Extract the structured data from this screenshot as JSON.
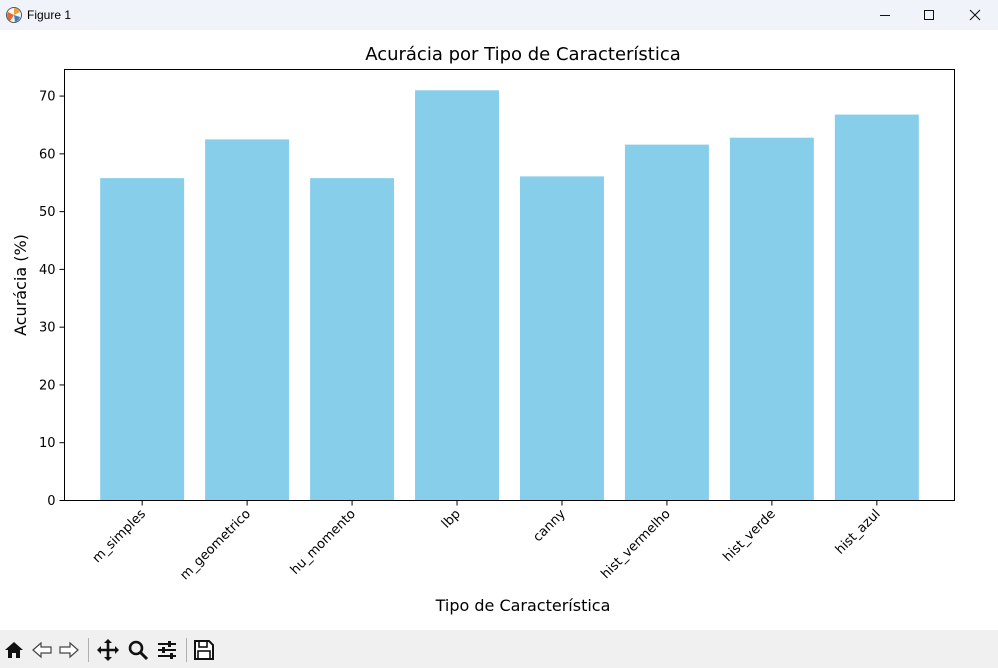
{
  "window": {
    "title": "Figure 1",
    "icons": {
      "app": "matplotlib-icon",
      "minimize": "minimize-icon",
      "maximize": "maximize-icon",
      "close": "close-icon"
    }
  },
  "toolbar": {
    "buttons": [
      {
        "name": "home-button",
        "icon": "home-icon"
      },
      {
        "name": "back-button",
        "icon": "arrow-left-icon"
      },
      {
        "name": "forward-button",
        "icon": "arrow-right-icon"
      },
      {
        "name": "pan-button",
        "icon": "move-icon"
      },
      {
        "name": "zoom-button",
        "icon": "magnifier-icon"
      },
      {
        "name": "configure-subplots-button",
        "icon": "sliders-icon"
      },
      {
        "name": "save-button",
        "icon": "floppy-disk-icon"
      }
    ]
  },
  "chart_data": {
    "type": "bar",
    "title": "Acurácia por Tipo de Característica",
    "xlabel": "Tipo de Característica",
    "ylabel": "Acurácia (%)",
    "categories": [
      "m_simples",
      "m_geometrico",
      "hu_momento",
      "lbp",
      "canny",
      "hist_vermelho",
      "hist_verde",
      "hist_azul"
    ],
    "values": [
      55.8,
      62.5,
      55.8,
      71.0,
      56.1,
      61.6,
      62.8,
      66.8
    ],
    "ylim": [
      0,
      74.6
    ],
    "yticks": [
      "0",
      "10",
      "20",
      "30",
      "40",
      "50",
      "60",
      "70"
    ],
    "xtick_rotation": 45,
    "bar_color": "#87ceeb",
    "grid": false,
    "legend": false
  }
}
